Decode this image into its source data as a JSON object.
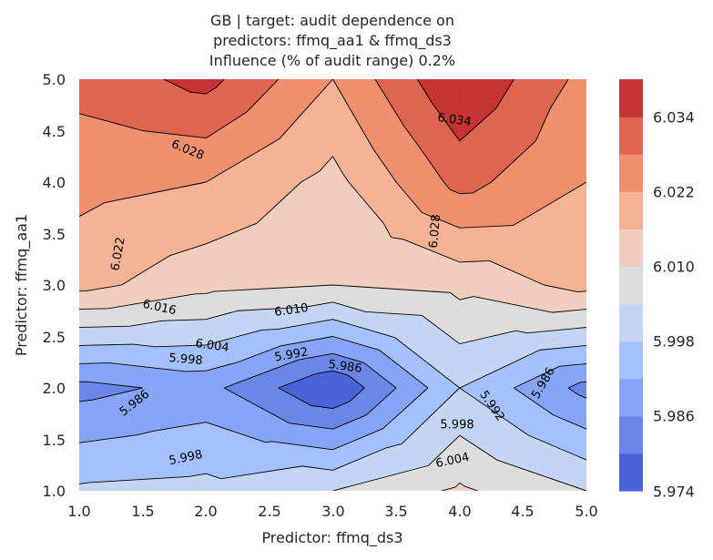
{
  "chart_data": {
    "type": "contour",
    "title_lines": [
      "GB | target: audit dependence on",
      "predictors: ffmq_aa1 & ffmq_ds3",
      "Influence (% of audit range) 0.2%"
    ],
    "xlabel": "Predictor: ffmq_ds3",
    "ylabel": "Predictor: ffmq_aa1",
    "xlim": [
      1.0,
      5.0
    ],
    "ylim": [
      1.0,
      5.0
    ],
    "xticks": [
      "1.0",
      "1.5",
      "2.0",
      "2.5",
      "3.0",
      "3.5",
      "4.0",
      "4.5",
      "5.0"
    ],
    "yticks": [
      "1.0",
      "1.5",
      "2.0",
      "2.5",
      "3.0",
      "3.5",
      "4.0",
      "4.5",
      "5.0"
    ],
    "x": [
      1.0,
      2.0,
      3.0,
      4.0,
      5.0
    ],
    "y": [
      1.0,
      2.0,
      3.0,
      4.0,
      5.0
    ],
    "z": [
      [
        5.999,
        6.0,
        6.004,
        6.011,
        6.004
      ],
      [
        5.984,
        5.988,
        5.974,
        5.998,
        5.984
      ],
      [
        6.018,
        6.012,
        6.01,
        6.012,
        6.018
      ],
      [
        6.024,
        6.022,
        6.014,
        6.03,
        6.022
      ],
      [
        6.03,
        6.036,
        6.022,
        6.04,
        6.026
      ]
    ],
    "levels": [
      5.974,
      5.98,
      5.986,
      5.992,
      5.998,
      6.004,
      6.01,
      6.016,
      6.022,
      6.028,
      6.034,
      6.04
    ],
    "colors": [
      "#4a63d6",
      "#6a87e8",
      "#87a5f6",
      "#a5c1fd",
      "#c4d5f4",
      "#dcdcdc",
      "#f0cdbc",
      "#f5b295",
      "#ef906f",
      "#de6650",
      "#c53332"
    ],
    "colorbar_ticks": [
      "5.974",
      "5.986",
      "5.998",
      "6.010",
      "6.022",
      "6.034"
    ],
    "contour_labels": [
      "6.028",
      "6.034",
      "6.022",
      "6.028",
      "6.016",
      "6.010",
      "6.004",
      "5.998",
      "5.992",
      "5.986",
      "5.986",
      "5.992",
      "5.986",
      "5.998",
      "5.998",
      "6.004"
    ]
  }
}
